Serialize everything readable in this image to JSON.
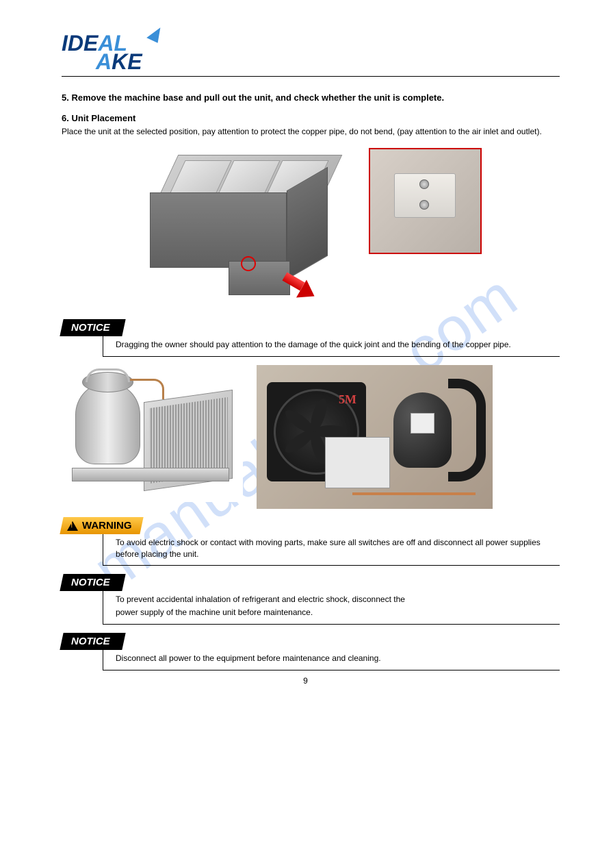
{
  "logo": {
    "part1": "IDE",
    "part2": "AL",
    "part3": "A",
    "part4": "KE"
  },
  "watermark": "manualshive.com",
  "section5": {
    "title": "5. Remove the machine base and pull out the unit, and check whether the unit is complete."
  },
  "section6": {
    "title": "6. Unit Placement",
    "text": "Place the unit at the selected position, pay attention to protect the copper pipe, do not bend, (pay attention to the air inlet and outlet)."
  },
  "notices": {
    "notice1": "Dragging the owner should pay attention to the damage of the quick joint and the bending of the copper pipe.",
    "notice2_line1": "To prevent accidental inhalation of refrigerant and electric shock, disconnect the",
    "notice2_line2": "power supply of the machine unit before maintenance.",
    "notice3": "Disconnect all power to the equipment before maintenance and cleaning."
  },
  "warning": {
    "label": "WARNING",
    "text": "To avoid electric shock or contact with moving parts, make sure all switches are off and disconnect all power supplies before placing the unit."
  },
  "photo_marker": "5M",
  "footer": {
    "page": "9"
  },
  "colors": {
    "logo_dark": "#0a3a7a",
    "logo_light": "#3a8fd8",
    "warning_bg": "#f5a623",
    "notice_bg": "#000000",
    "inset_border": "#cc0000",
    "watermark": "rgba(70,130,230,0.25)"
  }
}
